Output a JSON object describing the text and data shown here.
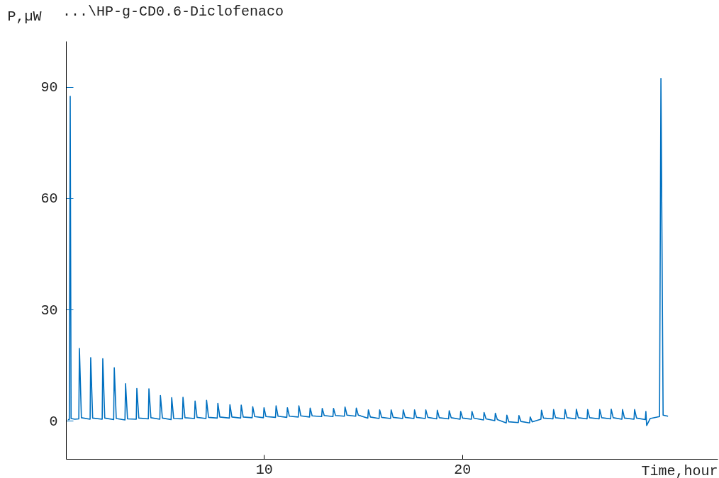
{
  "chart_data": {
    "type": "line",
    "title": "...\\HP-g-CD0.6-Diclofenaco",
    "ylabel": "P,µW",
    "xlabel": "Time,hour",
    "xlim": [
      0,
      32.9
    ],
    "ylim": [
      -10.3,
      102.4
    ],
    "xticks": [
      10,
      20
    ],
    "yticks": [
      0,
      30,
      60,
      90
    ],
    "grid": false,
    "line_style": "solid",
    "series": [
      {
        "color": "#0070c0",
        "x": [
          0.1,
          0.17,
          0.215,
          0.26,
          0.45,
          0.65,
          0.68,
          0.78,
          1.22,
          1.25,
          1.35,
          1.83,
          1.86,
          1.96,
          2.41,
          2.44,
          2.54,
          2.98,
          3.01,
          3.11,
          3.55,
          3.58,
          3.68,
          4.16,
          4.19,
          4.29,
          4.74,
          4.77,
          4.87,
          5.31,
          5.34,
          5.44,
          5.88,
          5.91,
          6.01,
          6.49,
          6.52,
          6.62,
          7.07,
          7.1,
          7.2,
          7.64,
          7.67,
          7.77,
          8.25,
          8.28,
          8.38,
          8.82,
          8.85,
          8.95,
          9.4,
          9.43,
          9.53,
          9.97,
          10.0,
          10.1,
          10.58,
          10.61,
          10.71,
          11.15,
          11.18,
          11.28,
          11.73,
          11.76,
          11.86,
          12.3,
          12.33,
          12.43,
          12.91,
          12.94,
          13.04,
          13.48,
          13.51,
          13.61,
          14.06,
          14.09,
          14.19,
          14.63,
          14.66,
          14.76,
          15.24,
          15.27,
          15.37,
          15.81,
          15.84,
          15.94,
          16.39,
          16.42,
          16.52,
          17.0,
          17.03,
          17.13,
          17.57,
          17.6,
          17.7,
          18.14,
          18.17,
          18.27,
          18.72,
          18.75,
          18.85,
          19.32,
          19.35,
          19.45,
          19.9,
          19.93,
          20.03,
          20.47,
          20.5,
          20.6,
          21.08,
          21.11,
          21.21,
          21.65,
          21.68,
          21.78,
          22.23,
          22.26,
          22.36,
          22.84,
          22.87,
          22.97,
          23.41,
          23.44,
          23.54,
          23.98,
          24.01,
          24.11,
          24.59,
          24.62,
          24.72,
          25.17,
          25.2,
          25.3,
          25.74,
          25.77,
          25.87,
          26.31,
          26.34,
          26.44,
          26.92,
          26.95,
          27.05,
          27.5,
          27.53,
          27.63,
          28.07,
          28.1,
          28.2,
          28.68,
          28.71,
          28.81,
          29.25,
          29.28,
          29.32,
          29.5,
          29.97,
          30.04,
          30.15,
          30.4
        ],
        "values": [
          0.3,
          0.3,
          87.5,
          0.6,
          0.4,
          0.5,
          19.5,
          0.8,
          0.4,
          17,
          0.7,
          0.4,
          16.7,
          0.7,
          0.3,
          14.3,
          0.6,
          0.2,
          10,
          0.5,
          0.4,
          8.7,
          0.7,
          0.5,
          8.6,
          0.8,
          0.4,
          6.8,
          0.7,
          0.3,
          6.2,
          0.6,
          0.5,
          6.3,
          0.8,
          0.6,
          5.3,
          0.9,
          0.6,
          5.5,
          0.9,
          0.7,
          4.7,
          1.0,
          0.7,
          4.3,
          1.0,
          0.7,
          4.2,
          1.0,
          0.8,
          3.8,
          1.1,
          0.8,
          3.5,
          1.1,
          0.9,
          4.0,
          1.2,
          0.9,
          3.5,
          1.2,
          1.0,
          4.0,
          1.3,
          1.0,
          3.4,
          1.3,
          1.1,
          3.3,
          1.4,
          1.1,
          3.3,
          1.4,
          1.2,
          3.7,
          1.5,
          1.2,
          3.4,
          1.5,
          0.7,
          2.9,
          1.0,
          0.6,
          2.9,
          0.9,
          0.6,
          2.9,
          0.9,
          0.6,
          2.9,
          0.9,
          0.6,
          2.9,
          0.9,
          0.6,
          2.9,
          0.9,
          0.5,
          2.8,
          0.8,
          0.5,
          2.7,
          0.8,
          0.4,
          2.5,
          0.7,
          0.4,
          2.5,
          0.7,
          0.2,
          2.2,
          0.5,
          0.0,
          2.0,
          0.3,
          -0.6,
          1.5,
          -0.3,
          -0.5,
          1.4,
          -0.2,
          -0.6,
          1.0,
          -0.3,
          0.4,
          2.8,
          0.7,
          0.5,
          3.0,
          0.8,
          0.5,
          3.0,
          0.8,
          0.5,
          3.1,
          0.8,
          0.5,
          3.0,
          0.8,
          0.5,
          3.0,
          0.8,
          0.5,
          3.1,
          0.8,
          0.4,
          3.0,
          0.7,
          0.4,
          3.0,
          0.7,
          0.3,
          2.5,
          -1.3,
          0.6,
          1.1,
          92.3,
          1.5,
          1.2
        ]
      }
    ]
  }
}
